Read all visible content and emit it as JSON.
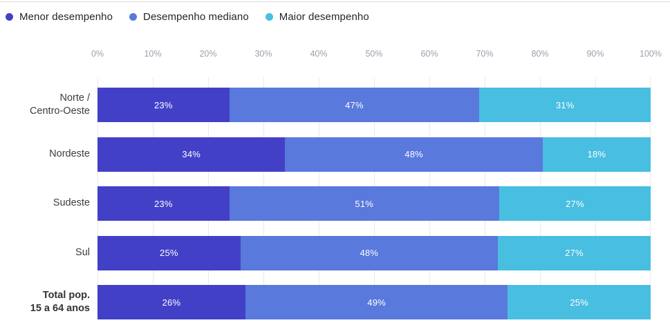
{
  "page": {
    "background": "#ffffff",
    "top_border_color": "#d9d9d9",
    "gridline_color": "#e8e9eb",
    "axis_tick_color": "#9aa1ac",
    "category_label_color": "#3a3d42",
    "bar_value_label_color": "#ffffff"
  },
  "legend": {
    "items": [
      {
        "label": "Menor desempenho",
        "color": "#4340C8"
      },
      {
        "label": "Desempenho mediano",
        "color": "#5979DC"
      },
      {
        "label": "Maior desempenho",
        "color": "#48BEE1"
      }
    ]
  },
  "chart_data": {
    "type": "bar",
    "stacked": true,
    "orientation": "horizontal",
    "title": "",
    "xlabel": "",
    "ylabel": "",
    "xlim": [
      0,
      100
    ],
    "x_ticks": [
      "0%",
      "10%",
      "20%",
      "30%",
      "40%",
      "50%",
      "60%",
      "70%",
      "80%",
      "90%",
      "100%"
    ],
    "grid": true,
    "legend_position": "top-left",
    "value_suffix": "%",
    "categories": [
      {
        "lines": [
          "Norte /",
          "Centro-Oeste"
        ],
        "bold": false
      },
      {
        "lines": [
          "Nordeste"
        ],
        "bold": false
      },
      {
        "lines": [
          "Sudeste"
        ],
        "bold": false
      },
      {
        "lines": [
          "Sul"
        ],
        "bold": false
      },
      {
        "lines": [
          "Total pop.",
          "15 a 64 anos"
        ],
        "bold": true
      }
    ],
    "series": [
      {
        "name": "Menor desempenho",
        "color": "#4340C8",
        "values": [
          23,
          34,
          23,
          25,
          26
        ]
      },
      {
        "name": "Desempenho mediano",
        "color": "#5979DC",
        "values": [
          47,
          48,
          51,
          48,
          49
        ]
      },
      {
        "name": "Maior desempenho",
        "color": "#48BEE1",
        "values": [
          31,
          18,
          27,
          27,
          25
        ]
      }
    ]
  }
}
